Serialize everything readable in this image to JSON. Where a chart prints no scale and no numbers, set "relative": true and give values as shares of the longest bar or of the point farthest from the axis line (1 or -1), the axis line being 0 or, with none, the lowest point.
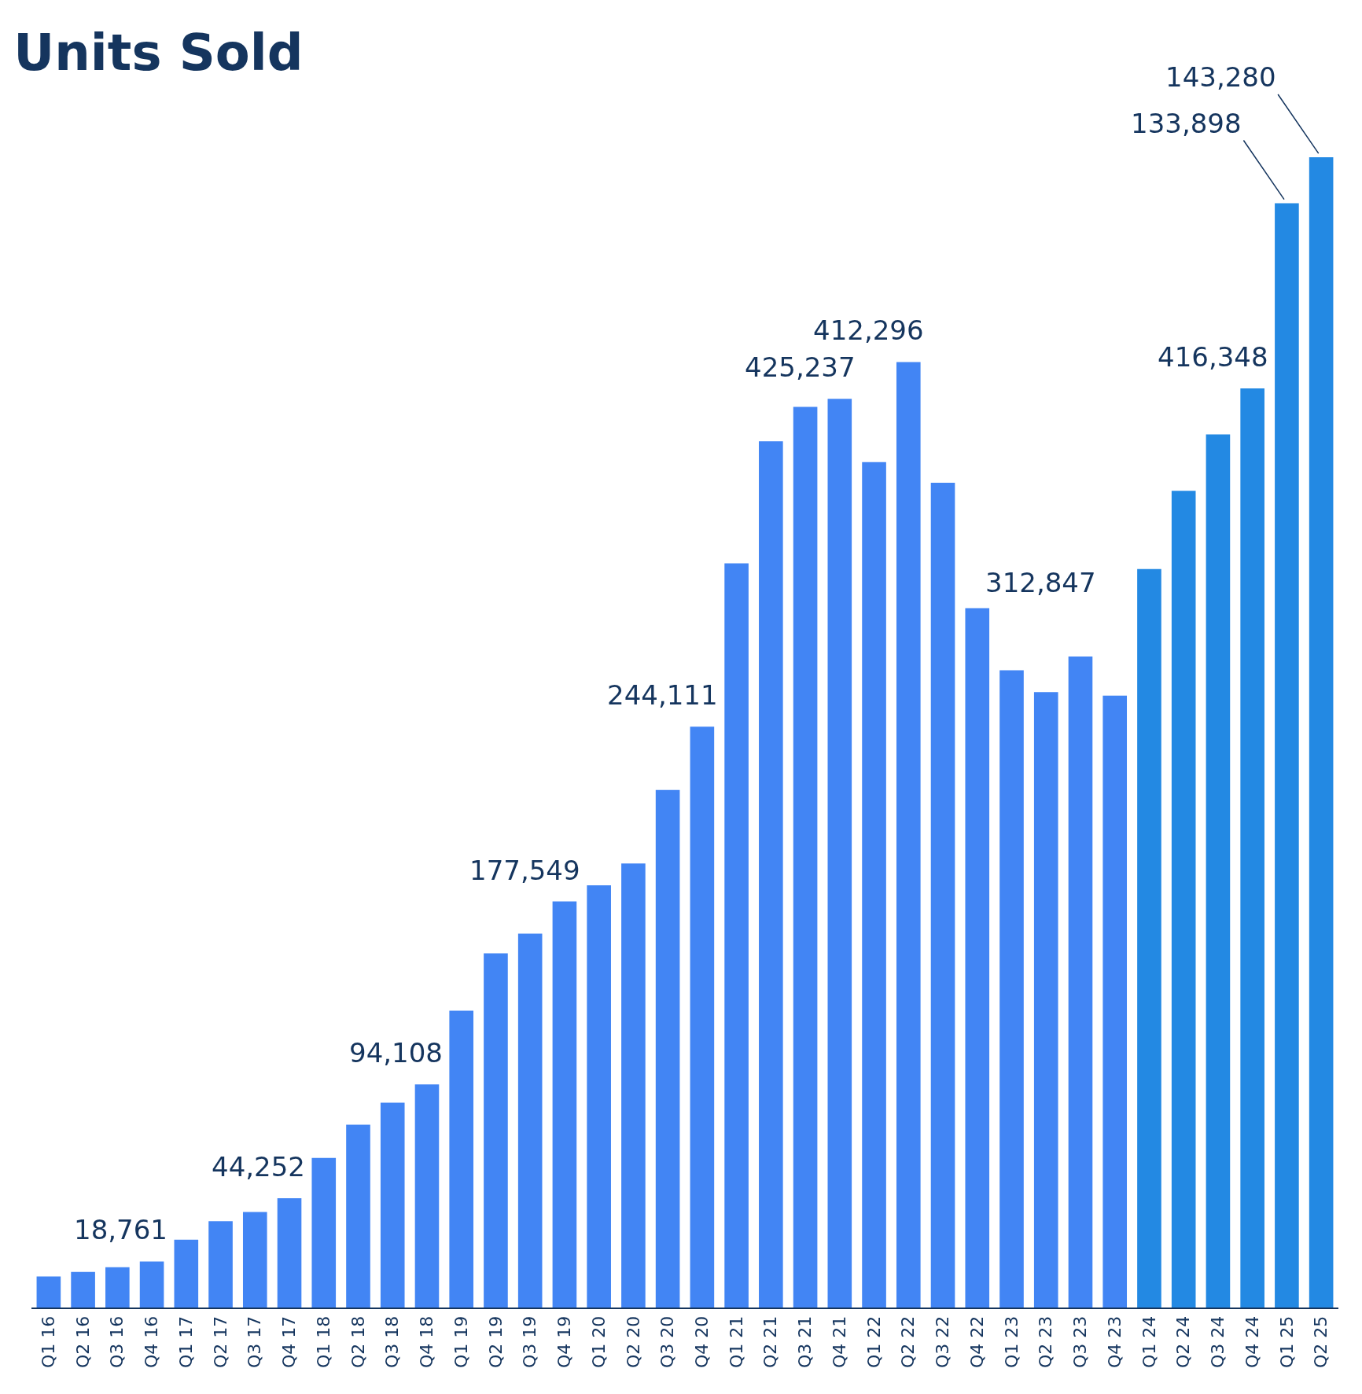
{
  "chart_data": {
    "type": "bar",
    "title": "Units Sold",
    "relative": true,
    "categories": [
      "Q1 16",
      "Q2 16",
      "Q3 16",
      "Q4 16",
      "Q1 17",
      "Q2 17",
      "Q3 17",
      "Q4 17",
      "Q1 18",
      "Q2 18",
      "Q3 18",
      "Q4 18",
      "Q1 19",
      "Q2 19",
      "Q3 19",
      "Q4 19",
      "Q1 20",
      "Q2 20",
      "Q3 20",
      "Q4 20",
      "Q1 21",
      "Q2 21",
      "Q3 21",
      "Q4 21",
      "Q1 22",
      "Q2 22",
      "Q3 22",
      "Q4 22",
      "Q1 23",
      "Q2 23",
      "Q3 23",
      "Q4 23",
      "Q1 24",
      "Q2 24",
      "Q3 24",
      "Q4 24",
      "Q1 25",
      "Q2 25"
    ],
    "values": [
      0.027,
      0.031,
      0.035,
      0.04,
      0.059,
      0.075,
      0.083,
      0.095,
      0.13,
      0.159,
      0.178,
      0.194,
      0.258,
      0.308,
      0.325,
      0.353,
      0.367,
      0.386,
      0.45,
      0.505,
      0.647,
      0.753,
      0.783,
      0.79,
      0.735,
      0.822,
      0.717,
      0.608,
      0.554,
      0.535,
      0.566,
      0.532,
      0.642,
      0.71,
      0.759,
      0.799,
      0.96,
      1
    ],
    "colors": [
      "#4285f4",
      "#4285f4",
      "#4285f4",
      "#4285f4",
      "#4285f4",
      "#4285f4",
      "#4285f4",
      "#4285f4",
      "#4285f4",
      "#4285f4",
      "#4285f4",
      "#4285f4",
      "#4285f4",
      "#4285f4",
      "#4285f4",
      "#4285f4",
      "#4285f4",
      "#4285f4",
      "#4285f4",
      "#4285f4",
      "#4285f4",
      "#4285f4",
      "#4285f4",
      "#4285f4",
      "#4285f4",
      "#4285f4",
      "#4285f4",
      "#4285f4",
      "#4285f4",
      "#4285f4",
      "#4285f4",
      "#4285f4",
      "#2389e3",
      "#2389e3",
      "#2389e3",
      "#2389e3",
      "#2389e3",
      "#2389e3"
    ],
    "annotations": [
      {
        "text": "18,761",
        "x": "Q4 16",
        "y": 0.04
      },
      {
        "text": "44,252",
        "x": "Q4 17",
        "y": 0.095
      },
      {
        "text": "94,108",
        "x": "Q4 18",
        "y": 0.194
      },
      {
        "text": "177,549",
        "x": "Q4 19",
        "y": 0.353
      },
      {
        "text": "244,111",
        "x": "Q4 20",
        "y": 0.505
      },
      {
        "text": "425,237",
        "x": "Q4 21",
        "y": 0.79
      },
      {
        "text": "412,296",
        "x": "Q2 22",
        "y": 0.822
      },
      {
        "text": "312,847",
        "x": "Q3 23",
        "y": 0.566
      },
      {
        "text": "416,348",
        "x": "Q4 24",
        "y": 0.799
      },
      {
        "text": "133,898",
        "x": "Q1 25",
        "y": 0.96
      },
      {
        "text": "143,280",
        "x": "Q2 25",
        "y": 1
      }
    ]
  }
}
